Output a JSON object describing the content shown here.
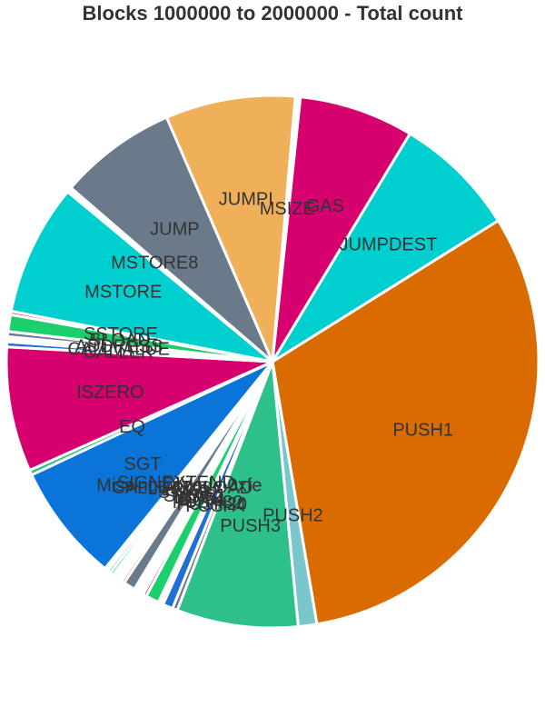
{
  "chart_data": {
    "type": "pie",
    "title": "Blocks 1000000 to 2000000 - Total count",
    "slices": [
      {
        "label": "PUSH1",
        "value": 30.5,
        "color": "#d96b00"
      },
      {
        "label": "PUSH2",
        "value": 1.1,
        "color": "#79c6cc"
      },
      {
        "label": "PUSH3",
        "value": 7.2,
        "color": "#2ec08a"
      },
      {
        "label": "PUSH4",
        "value": 0.3,
        "color": "#6b7a8a"
      },
      {
        "label": "PUSH20",
        "value": 0.6,
        "color": "#1f6fd6"
      },
      {
        "label": "PUSH32",
        "value": 0.3,
        "color": "#ffffff"
      },
      {
        "label": "DUP1",
        "value": 0.8,
        "color": "#1ccf6d"
      },
      {
        "label": "DUP2",
        "value": 0.2,
        "color": "#d6006f"
      },
      {
        "label": "SWAP1",
        "value": 0.6,
        "color": "#ffffff"
      },
      {
        "label": "SWAP2",
        "value": 0.7,
        "color": "#6b7a8a"
      },
      {
        "label": "LOG1",
        "value": 0.2,
        "color": "#f0b05a"
      },
      {
        "label": "CALLDATALOAD",
        "value": 0.6,
        "color": "#ffffff"
      },
      {
        "label": "Missing opcode 0xfe",
        "value": 0.2,
        "color": "#00cfd0"
      },
      {
        "label": "DIV",
        "value": 0.2,
        "color": "#b0b0b0"
      },
      {
        "label": "SIGNEXTEND",
        "value": 0.2,
        "color": "#ffffff"
      },
      {
        "label": "SGT",
        "value": 7.0,
        "color": "#0b74d8"
      },
      {
        "label": "EQ",
        "value": 0.3,
        "color": "#2ec08a"
      },
      {
        "label": "ISZERO",
        "value": 7.4,
        "color": "#d6006f"
      },
      {
        "label": "CALLER",
        "value": 0.3,
        "color": "#1f6fd6"
      },
      {
        "label": "CALLVALUE",
        "value": 0.3,
        "color": "#ffffff"
      },
      {
        "label": "ADDRESS",
        "value": 0.3,
        "color": "#6b7a8a"
      },
      {
        "label": "SLOAD",
        "value": 1.0,
        "color": "#1ccf6d"
      },
      {
        "label": "SSTORE",
        "value": 0.2,
        "color": "#d6006f"
      },
      {
        "label": "MSTORE",
        "value": 7.8,
        "color": "#00cfd0"
      },
      {
        "label": "MSTORE8",
        "value": 0.3,
        "color": "#ffffff"
      },
      {
        "label": "JUMP",
        "value": 7.0,
        "color": "#6b7a8a"
      },
      {
        "label": "JUMPI",
        "value": 7.7,
        "color": "#f0b05a"
      },
      {
        "label": "MSIZE",
        "value": 0.3,
        "color": "#ffffff"
      },
      {
        "label": "GAS",
        "value": 6.8,
        "color": "#d6006f"
      },
      {
        "label": "JUMPDEST",
        "value": 7.3,
        "color": "#00cfd0"
      }
    ]
  }
}
